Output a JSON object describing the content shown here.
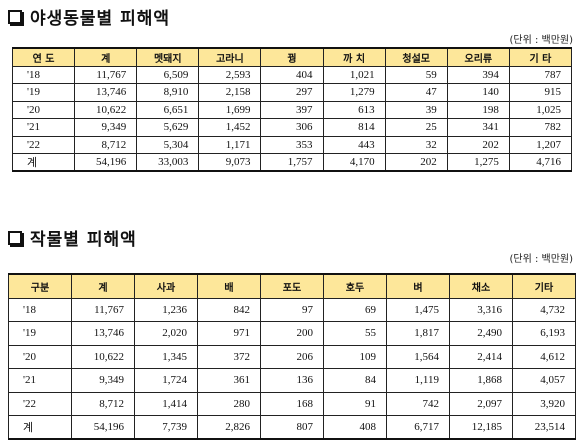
{
  "section1": {
    "title": "야생동물별 피해액",
    "unit": "(단위 : 백만원)",
    "headers": [
      "연 도",
      "계",
      "멧돼지",
      "고라니",
      "꿩",
      "까 치",
      "청설모",
      "오리류",
      "기 타"
    ],
    "rows": [
      [
        "'18",
        "11,767",
        "6,509",
        "2,593",
        "404",
        "1,021",
        "59",
        "394",
        "787"
      ],
      [
        "'19",
        "13,746",
        "8,910",
        "2,158",
        "297",
        "1,279",
        "47",
        "140",
        "915"
      ],
      [
        "'20",
        "10,622",
        "6,651",
        "1,699",
        "397",
        "613",
        "39",
        "198",
        "1,025"
      ],
      [
        "'21",
        "9,349",
        "5,629",
        "1,452",
        "306",
        "814",
        "25",
        "341",
        "782"
      ],
      [
        "'22",
        "8,712",
        "5,304",
        "1,171",
        "353",
        "443",
        "32",
        "202",
        "1,207"
      ],
      [
        "계",
        "54,196",
        "33,003",
        "9,073",
        "1,757",
        "4,170",
        "202",
        "1,275",
        "4,716"
      ]
    ]
  },
  "section2": {
    "title": "작물별 피해액",
    "unit": "(단위 : 백만원)",
    "headers": [
      "구분",
      "계",
      "사과",
      "배",
      "포도",
      "호두",
      "벼",
      "채소",
      "기타"
    ],
    "rows": [
      [
        "'18",
        "11,767",
        "1,236",
        "842",
        "97",
        "69",
        "1,475",
        "3,316",
        "4,732"
      ],
      [
        "'19",
        "13,746",
        "2,020",
        "971",
        "200",
        "55",
        "1,817",
        "2,490",
        "6,193"
      ],
      [
        "'20",
        "10,622",
        "1,345",
        "372",
        "206",
        "109",
        "1,564",
        "2,414",
        "4,612"
      ],
      [
        "'21",
        "9,349",
        "1,724",
        "361",
        "136",
        "84",
        "1,119",
        "1,868",
        "4,057"
      ],
      [
        "'22",
        "8,712",
        "1,414",
        "280",
        "168",
        "91",
        "742",
        "2,097",
        "3,920"
      ],
      [
        "계",
        "54,196",
        "7,739",
        "2,826",
        "807",
        "408",
        "6,717",
        "12,185",
        "23,514"
      ]
    ]
  }
}
